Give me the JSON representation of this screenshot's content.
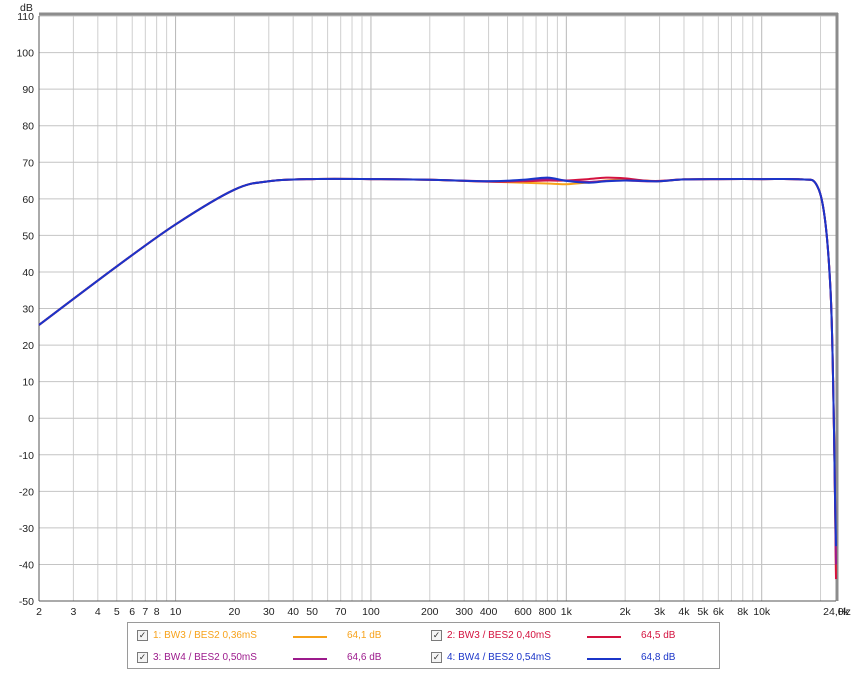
{
  "chart_data": {
    "type": "line",
    "ylabel": "dB",
    "x_unit_label": "Hz",
    "x_scale": "log",
    "xlim": [
      2,
      24000
    ],
    "ylim": [
      -50,
      110
    ],
    "grid": true,
    "y_ticks": [
      "110",
      "100",
      "90",
      "80",
      "70",
      "60",
      "50",
      "40",
      "30",
      "20",
      "10",
      "0",
      "-10",
      "-20",
      "-30",
      "-40",
      "-50"
    ],
    "x_ticks": [
      {
        "v": 2,
        "label": "2"
      },
      {
        "v": 3,
        "label": "3"
      },
      {
        "v": 4,
        "label": "4"
      },
      {
        "v": 5,
        "label": "5"
      },
      {
        "v": 6,
        "label": "6"
      },
      {
        "v": 7,
        "label": "7"
      },
      {
        "v": 8,
        "label": "8"
      },
      {
        "v": 10,
        "label": "10"
      },
      {
        "v": 20,
        "label": "20"
      },
      {
        "v": 30,
        "label": "30"
      },
      {
        "v": 40,
        "label": "40"
      },
      {
        "v": 50,
        "label": "50"
      },
      {
        "v": 70,
        "label": "70"
      },
      {
        "v": 100,
        "label": "100"
      },
      {
        "v": 200,
        "label": "200"
      },
      {
        "v": 300,
        "label": "300"
      },
      {
        "v": 400,
        "label": "400"
      },
      {
        "v": 600,
        "label": "600"
      },
      {
        "v": 800,
        "label": "800"
      },
      {
        "v": 1000,
        "label": "1k"
      },
      {
        "v": 2000,
        "label": "2k"
      },
      {
        "v": 3000,
        "label": "3k"
      },
      {
        "v": 4000,
        "label": "4k"
      },
      {
        "v": 5000,
        "label": "5k"
      },
      {
        "v": 6000,
        "label": "6k"
      },
      {
        "v": 8000,
        "label": "8k"
      },
      {
        "v": 10000,
        "label": "10k"
      },
      {
        "v": 24000,
        "label": "24,0k"
      }
    ],
    "series": [
      {
        "name": "1: BW3 / BES2 0,36mS",
        "color": "#f7a21b",
        "value_label": "64,1 dB",
        "x": [
          2,
          5,
          10,
          20,
          30,
          50,
          100,
          200,
          400,
          600,
          800,
          1000,
          1300,
          1600,
          2000,
          2500,
          3000,
          4000,
          6000,
          10000,
          16000,
          19000,
          21000,
          22500,
          23200,
          23700,
          24000
        ],
        "y": [
          25.5,
          41.5,
          53,
          62.5,
          64.8,
          65.4,
          65.4,
          65.2,
          64.7,
          64.4,
          64.2,
          64.0,
          64.5,
          65.0,
          65.2,
          65.0,
          64.8,
          65.3,
          65.4,
          65.4,
          65.3,
          64,
          55,
          35,
          10,
          -20,
          -43
        ]
      },
      {
        "name": "2: BW3 / BES2 0,40mS",
        "color": "#d4123f",
        "value_label": "64,5 dB",
        "x": [
          2,
          5,
          10,
          20,
          30,
          50,
          100,
          200,
          400,
          600,
          800,
          1000,
          1300,
          1600,
          2000,
          2500,
          3000,
          4000,
          6000,
          10000,
          16000,
          19000,
          21000,
          22500,
          23200,
          23700,
          24000
        ],
        "y": [
          25.5,
          41.5,
          53,
          62.5,
          64.8,
          65.4,
          65.4,
          65.2,
          64.7,
          64.8,
          65.0,
          65.0,
          65.4,
          65.8,
          65.6,
          65.0,
          64.9,
          65.3,
          65.4,
          65.4,
          65.3,
          64,
          55,
          35,
          10,
          -20,
          -44
        ]
      },
      {
        "name": "3: BW4 / BES2 0,50mS",
        "color": "#9c1a8c",
        "value_label": "64,6 dB",
        "x": [
          2,
          5,
          10,
          20,
          30,
          50,
          100,
          200,
          400,
          600,
          800,
          1000,
          1300,
          1600,
          2000,
          2500,
          3000,
          4000,
          6000,
          10000,
          16000,
          19000,
          21000,
          22500,
          23200,
          23700,
          24000
        ],
        "y": [
          25.5,
          41.5,
          53,
          62.5,
          64.8,
          65.4,
          65.4,
          65.2,
          64.8,
          65.0,
          65.4,
          65.0,
          64.6,
          64.9,
          65.0,
          64.8,
          64.8,
          65.3,
          65.4,
          65.4,
          65.3,
          64,
          55,
          35,
          10,
          -20,
          -40
        ]
      },
      {
        "name": "4: BW4 / BES2 0,54mS",
        "color": "#1b35c9",
        "value_label": "64,8 dB",
        "x": [
          2,
          5,
          10,
          20,
          30,
          50,
          100,
          200,
          400,
          600,
          800,
          1000,
          1300,
          1600,
          2000,
          2500,
          3000,
          4000,
          6000,
          10000,
          16000,
          19000,
          21000,
          22500,
          23200,
          23700,
          24000
        ],
        "y": [
          25.5,
          41.5,
          53,
          62.5,
          64.8,
          65.4,
          65.4,
          65.2,
          64.8,
          65.2,
          65.8,
          64.9,
          64.4,
          64.8,
          65.0,
          64.9,
          64.8,
          65.3,
          65.4,
          65.4,
          65.3,
          64,
          55,
          35,
          10,
          -20,
          -35
        ]
      }
    ],
    "legend_check": "✓"
  }
}
